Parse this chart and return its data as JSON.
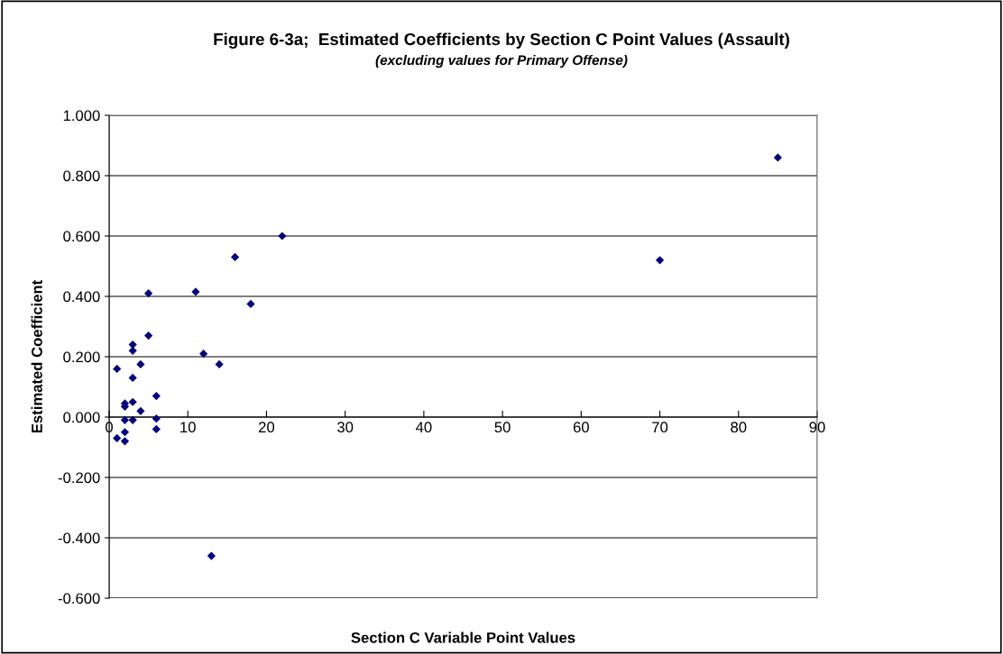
{
  "chart_data": {
    "type": "scatter",
    "title": "Figure 6-3a;  Estimated Coefficients by Section C Point Values (Assault)",
    "subtitle": "(excluding values for Primary Offense)",
    "xlabel": "Section C Variable Point Values",
    "ylabel": "Estimated Coefficient",
    "x": [
      1,
      1,
      2,
      2,
      2,
      2,
      2,
      3,
      3,
      3,
      3,
      3,
      4,
      4,
      5,
      5,
      6,
      6,
      6,
      11,
      12,
      13,
      14,
      16,
      18,
      22,
      70,
      85
    ],
    "series": [
      {
        "color": "#000080",
        "values": [
          0.16,
          -0.07,
          0.035,
          0.045,
          -0.01,
          -0.05,
          -0.08,
          0.24,
          0.22,
          0.13,
          0.05,
          -0.01,
          0.175,
          0.02,
          0.41,
          0.27,
          0.07,
          -0.005,
          -0.04,
          0.415,
          0.21,
          -0.46,
          0.175,
          0.53,
          0.375,
          0.6,
          0.52,
          0.86
        ]
      }
    ],
    "xlim": [
      0,
      90
    ],
    "xticks": [
      0,
      10,
      20,
      30,
      40,
      50,
      60,
      70,
      80,
      90
    ],
    "ylim": [
      -0.6,
      1.0
    ],
    "yticks": [
      {
        "value": -0.6,
        "label": "-0.600"
      },
      {
        "value": -0.4,
        "label": "-0.400"
      },
      {
        "value": -0.2,
        "label": "-0.200"
      },
      {
        "value": 0,
        "label": "0.000"
      },
      {
        "value": 0.2,
        "label": "0.200"
      },
      {
        "value": 0.4,
        "label": "0.400"
      },
      {
        "value": 0.6,
        "label": "0.600"
      },
      {
        "value": 0.8,
        "label": "0.800"
      },
      {
        "value": 1.0,
        "label": "1.000"
      }
    ],
    "grid": "y",
    "marker": "diamond"
  }
}
